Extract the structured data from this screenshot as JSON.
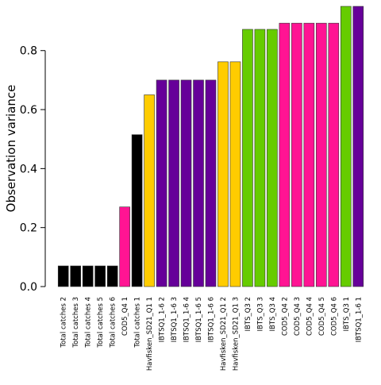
{
  "chart_data": {
    "type": "bar",
    "title": "",
    "xlabel": "",
    "ylabel": "Observation variance",
    "ylim": [
      0,
      0.95
    ],
    "yticks": [
      "0.0",
      "0.2",
      "0.4",
      "0.6",
      "0.8"
    ],
    "categories": [
      "Total catches 2",
      "Total catches 3",
      "Total catches 4",
      "Total catches 5",
      "Total catches 6",
      "COD5_Q4 1",
      "Total catches 1",
      "Havfisken_SD21_Q1 1",
      "IBTSQ1_1-6 2",
      "IBTSQ1_1-6 3",
      "IBTSQ1_1-6 4",
      "IBTSQ1_1-6 5",
      "IBTSQ1_1-6 6",
      "Havfisken_SD21_Q1 2",
      "Havfisken_SD21_Q1 3",
      "IBTS_Q3 2",
      "IBTS_Q3 3",
      "IBTS_Q3 4",
      "COD5_Q4 2",
      "COD5_Q4 3",
      "COD5_Q4 4",
      "COD5_Q4 5",
      "COD5_Q4 6",
      "IBTS_Q3 1",
      "IBTSQ1_1-6 1"
    ],
    "values": [
      0.07,
      0.07,
      0.07,
      0.07,
      0.07,
      0.27,
      0.515,
      0.65,
      0.7,
      0.7,
      0.7,
      0.7,
      0.7,
      0.762,
      0.762,
      0.872,
      0.872,
      0.872,
      0.893,
      0.893,
      0.893,
      0.893,
      0.893,
      0.95,
      0.95
    ],
    "colors": [
      "#000000",
      "#000000",
      "#000000",
      "#000000",
      "#000000",
      "#ff1493",
      "#000000",
      "#ffcc00",
      "#660099",
      "#660099",
      "#660099",
      "#660099",
      "#660099",
      "#ffcc00",
      "#ffcc00",
      "#66cc00",
      "#66cc00",
      "#66cc00",
      "#ff1493",
      "#ff1493",
      "#ff1493",
      "#ff1493",
      "#ff1493",
      "#66cc00",
      "#660099"
    ],
    "grid": false,
    "legend": "none"
  }
}
